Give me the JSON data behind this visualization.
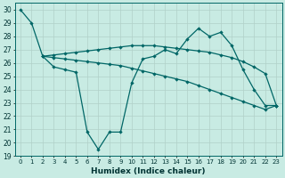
{
  "xlabel": "Humidex (Indice chaleur)",
  "bg_color": "#c8ebe3",
  "line_color": "#006666",
  "xlim": [
    -0.5,
    23.5
  ],
  "ylim": [
    19,
    30.5
  ],
  "yticks": [
    19,
    20,
    21,
    22,
    23,
    24,
    25,
    26,
    27,
    28,
    29,
    30
  ],
  "xticks": [
    0,
    1,
    2,
    3,
    4,
    5,
    6,
    7,
    8,
    9,
    10,
    11,
    12,
    13,
    14,
    15,
    16,
    17,
    18,
    19,
    20,
    21,
    22,
    23
  ],
  "line1_x": [
    0,
    1,
    2,
    3,
    4,
    5,
    6,
    7,
    8,
    9,
    10,
    11,
    12,
    13,
    14,
    15,
    16,
    17,
    18,
    19,
    20,
    21,
    22,
    23
  ],
  "line1_y": [
    30.0,
    29.0,
    26.5,
    25.7,
    25.5,
    25.3,
    20.8,
    19.5,
    20.8,
    20.8,
    24.5,
    26.3,
    26.5,
    27.0,
    26.7,
    27.8,
    28.6,
    28.0,
    28.3,
    27.3,
    25.5,
    24.0,
    22.8,
    22.8
  ],
  "line2_x": [
    2,
    3,
    4,
    5,
    6,
    7,
    8,
    9,
    10,
    11,
    12,
    13,
    14,
    15,
    16,
    17,
    18,
    19,
    20,
    21,
    22,
    23
  ],
  "line2_y": [
    26.5,
    26.6,
    26.7,
    26.8,
    26.9,
    27.0,
    27.1,
    27.2,
    27.3,
    27.3,
    27.3,
    27.2,
    27.1,
    27.0,
    26.9,
    26.8,
    26.6,
    26.4,
    26.1,
    25.7,
    25.2,
    22.8
  ],
  "line3_x": [
    2,
    3,
    4,
    5,
    6,
    7,
    8,
    9,
    10,
    11,
    12,
    13,
    14,
    15,
    16,
    17,
    18,
    19,
    20,
    21,
    22,
    23
  ],
  "line3_y": [
    26.5,
    26.4,
    26.3,
    26.2,
    26.1,
    26.0,
    25.9,
    25.8,
    25.6,
    25.4,
    25.2,
    25.0,
    24.8,
    24.6,
    24.3,
    24.0,
    23.7,
    23.4,
    23.1,
    22.8,
    22.5,
    22.8
  ]
}
